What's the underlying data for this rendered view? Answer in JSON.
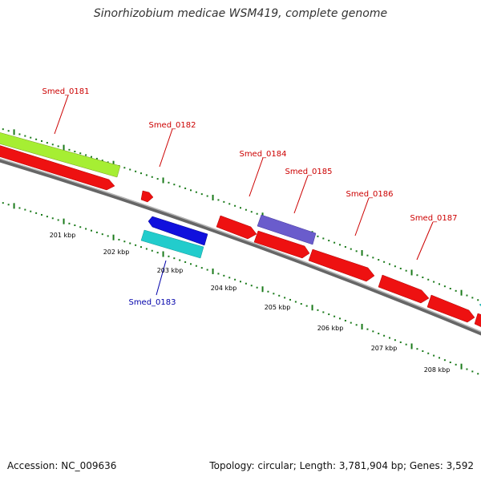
{
  "title": "Sinorhizobium medicae WSM419, complete genome",
  "footer": {
    "accession": "Accession: NC_009636",
    "summary": "Topology: circular; Length: 3,781,904 bp; Genes: 3,592"
  },
  "colors": {
    "backbone": "#7f7f7f",
    "tick": "#1a7a1a",
    "forward_gene": "#ee1111",
    "reverse_gene": "#1010dd",
    "label_forward": "#cc0000",
    "label_reverse": "#0000aa",
    "kbp_label": "#000000"
  },
  "kbp_labels": [
    "201 kbp",
    "202 kbp",
    "203 kbp",
    "204 kbp",
    "205 kbp",
    "206 kbp",
    "207 kbp",
    "208 kbp"
  ],
  "genes": [
    {
      "id": "Smed_0181",
      "color": "#a6ee33"
    },
    {
      "id": "Smed_0182",
      "color": "#ee1111"
    },
    {
      "id": "Smed_0183",
      "color": "#22cccc"
    },
    {
      "id": "Smed_0184",
      "color": "#ee1111"
    },
    {
      "id": "Smed_0185",
      "color": "#6a5ccc"
    },
    {
      "id": "Smed_0186",
      "color": "#ee1111"
    },
    {
      "id": "Smed_0187",
      "color": "#ee1111"
    }
  ]
}
